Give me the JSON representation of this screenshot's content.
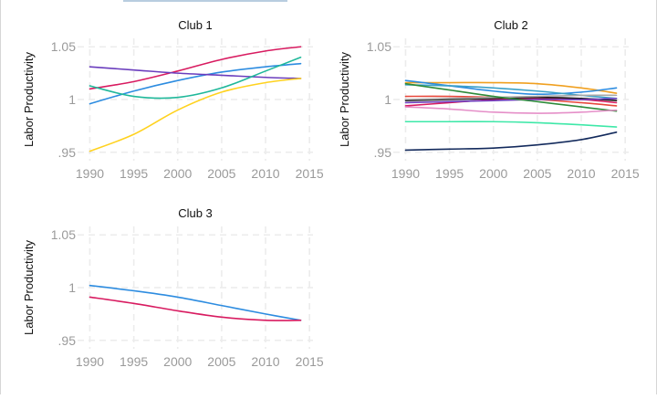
{
  "chart_data": [
    {
      "type": "line",
      "title": "Club 1",
      "xlabel": "",
      "ylabel": "Labor Productivity",
      "xlim": [
        1988.6,
        2015.4
      ],
      "ylim": [
        0.942,
        1.058
      ],
      "xticks": [
        1990,
        1995,
        2000,
        2005,
        2010,
        2015
      ],
      "xtick_labels": [
        "1990",
        "1995",
        "2000",
        "2005",
        "2010",
        "2015"
      ],
      "yticks": [
        0.95,
        1.0,
        1.05
      ],
      "ytick_labels": [
        ".95",
        "1",
        "1.05"
      ],
      "grid": true,
      "series": [
        {
          "color": "#d81b60",
          "x": [
            1990,
            1995,
            2000,
            2005,
            2010,
            2014
          ],
          "y": [
            1.01,
            1.017,
            1.027,
            1.038,
            1.046,
            1.05
          ]
        },
        {
          "color": "#2d8ce0",
          "x": [
            1990,
            1995,
            2000,
            2005,
            2010,
            2014
          ],
          "y": [
            0.996,
            1.008,
            1.018,
            1.026,
            1.031,
            1.034
          ]
        },
        {
          "color": "#6a3dbd",
          "x": [
            1990,
            1995,
            2000,
            2005,
            2010,
            2014
          ],
          "y": [
            1.031,
            1.028,
            1.025,
            1.023,
            1.021,
            1.02
          ]
        },
        {
          "color": "#1fb89a",
          "x": [
            1990,
            1995,
            2000,
            2005,
            2010,
            2014
          ],
          "y": [
            1.013,
            1.003,
            1.002,
            1.011,
            1.027,
            1.04
          ]
        },
        {
          "color": "#ffd21f",
          "x": [
            1990,
            1995,
            2000,
            2005,
            2010,
            2014
          ],
          "y": [
            0.951,
            0.967,
            0.99,
            1.007,
            1.016,
            1.02
          ]
        }
      ]
    },
    {
      "type": "line",
      "title": "Club 2",
      "xlabel": "",
      "ylabel": "Labor Productivity",
      "xlim": [
        1988.6,
        2015.4
      ],
      "ylim": [
        0.942,
        1.058
      ],
      "xticks": [
        1990,
        1995,
        2000,
        2005,
        2010,
        2015
      ],
      "xtick_labels": [
        "1990",
        "1995",
        "2000",
        "2005",
        "2010",
        "2015"
      ],
      "yticks": [
        0.95,
        1.0,
        1.05
      ],
      "ytick_labels": [
        ".95",
        "1",
        "1.05"
      ],
      "grid": true,
      "series": [
        {
          "color": "#f0a020",
          "x": [
            1990,
            1995,
            2000,
            2005,
            2010,
            2014
          ],
          "y": [
            1.016,
            1.016,
            1.016,
            1.015,
            1.011,
            1.006
          ]
        },
        {
          "color": "#2d8ce0",
          "x": [
            1990,
            1995,
            2000,
            2005,
            2010,
            2014
          ],
          "y": [
            1.018,
            1.013,
            1.008,
            1.005,
            1.007,
            1.011
          ]
        },
        {
          "color": "#3aa0c8",
          "x": [
            1990,
            1995,
            2000,
            2005,
            2010,
            2014
          ],
          "y": [
            1.014,
            1.013,
            1.011,
            1.008,
            1.004,
            1.001
          ]
        },
        {
          "color": "#e8483c",
          "x": [
            1990,
            1995,
            2000,
            2005,
            2010,
            2014
          ],
          "y": [
            1.003,
            1.003,
            1.002,
            1.0,
            0.997,
            0.994
          ]
        },
        {
          "color": "#d81b60",
          "x": [
            1990,
            1995,
            2000,
            2005,
            2010,
            2014
          ],
          "y": [
            0.994,
            0.997,
            1.0,
            1.001,
            1.0,
            0.997
          ]
        },
        {
          "color": "#1a1a1a",
          "x": [
            1990,
            1995,
            2000,
            2005,
            2010,
            2014
          ],
          "y": [
            0.999,
            1.0,
            1.001,
            1.002,
            1.001,
            0.999
          ]
        },
        {
          "color": "#a8a8a8",
          "x": [
            1990,
            1995,
            2000,
            2005,
            2010,
            2014
          ],
          "y": [
            1.0,
            1.001,
            1.002,
            1.003,
            1.004,
            1.004
          ]
        },
        {
          "color": "#6a3dbd",
          "x": [
            1990,
            1995,
            2000,
            2005,
            2010,
            2014
          ],
          "y": [
            0.997,
            0.998,
            0.999,
            1.0,
            1.0,
            1.001
          ]
        },
        {
          "color": "#2e8b3a",
          "x": [
            1990,
            1995,
            2000,
            2005,
            2010,
            2014
          ],
          "y": [
            1.015,
            1.009,
            1.003,
            0.998,
            0.993,
            0.989
          ]
        },
        {
          "color": "#e58fc8",
          "x": [
            1990,
            1995,
            2000,
            2005,
            2010,
            2014
          ],
          "y": [
            0.993,
            0.991,
            0.988,
            0.987,
            0.988,
            0.99
          ]
        },
        {
          "color": "#3ee8a8",
          "x": [
            1990,
            1995,
            2000,
            2005,
            2010,
            2014
          ],
          "y": [
            0.979,
            0.979,
            0.979,
            0.978,
            0.976,
            0.974
          ]
        },
        {
          "color": "#132a5c",
          "x": [
            1990,
            1995,
            2000,
            2005,
            2010,
            2014
          ],
          "y": [
            0.952,
            0.953,
            0.954,
            0.957,
            0.962,
            0.969
          ]
        }
      ]
    },
    {
      "type": "line",
      "title": "Club 3",
      "xlabel": "",
      "ylabel": "Labor Productivity",
      "xlim": [
        1988.6,
        2015.4
      ],
      "ylim": [
        0.942,
        1.058
      ],
      "xticks": [
        1990,
        1995,
        2000,
        2005,
        2010,
        2015
      ],
      "xtick_labels": [
        "1990",
        "1995",
        "2000",
        "2005",
        "2010",
        "2015"
      ],
      "yticks": [
        0.95,
        1.0,
        1.05
      ],
      "ytick_labels": [
        ".95",
        "1",
        "1.05"
      ],
      "grid": true,
      "series": [
        {
          "color": "#2d8ce0",
          "x": [
            1990,
            1995,
            2000,
            2005,
            2010,
            2014
          ],
          "y": [
            1.002,
            0.997,
            0.991,
            0.983,
            0.975,
            0.969
          ]
        },
        {
          "color": "#d81b60",
          "x": [
            1990,
            1995,
            2000,
            2005,
            2010,
            2014
          ],
          "y": [
            0.991,
            0.985,
            0.978,
            0.972,
            0.969,
            0.969
          ]
        }
      ]
    }
  ]
}
